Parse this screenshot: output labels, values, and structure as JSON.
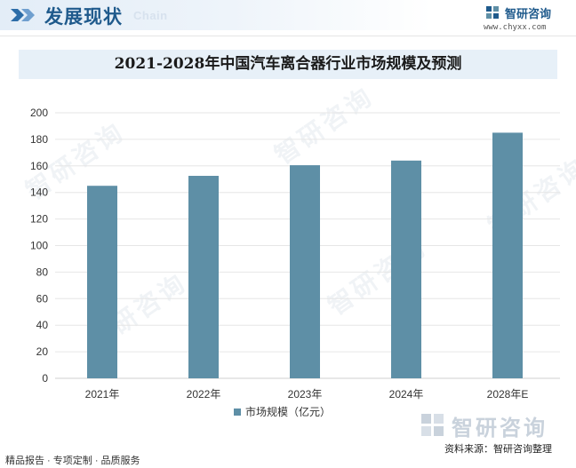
{
  "header": {
    "title": "发展现状",
    "subtitle": "Chain",
    "brand_name": "智研咨询",
    "brand_url": "www.chyxx.com",
    "icon": "double-chevron-icon"
  },
  "colors": {
    "bar": "#5e8fa6",
    "header_blue": "#1f5a8c",
    "title_band": "#e7f0f8"
  },
  "chart_data": {
    "type": "bar",
    "title": "2021-2028年中国汽车离合器行业市场规模及预测",
    "categories": [
      "2021年",
      "2022年",
      "2023年",
      "2024年",
      "2028年E"
    ],
    "series": [
      {
        "name": "市场规模（亿元）",
        "values": [
          145,
          152.5,
          160.5,
          164,
          185
        ]
      }
    ],
    "y_ticks": [
      "0",
      "20",
      "40",
      "60",
      "80",
      "100",
      "120",
      "140",
      "160",
      "180",
      "200"
    ],
    "ylim": [
      0,
      200
    ],
    "xlabel": "",
    "ylabel": "",
    "grid": true,
    "legend": "bottom"
  },
  "footer": {
    "tagline": "精品报告 · 专项定制 · 品质服务",
    "brand": "智研咨询",
    "source": "资料来源：智研咨询整理"
  },
  "watermark_text": "智研咨询"
}
